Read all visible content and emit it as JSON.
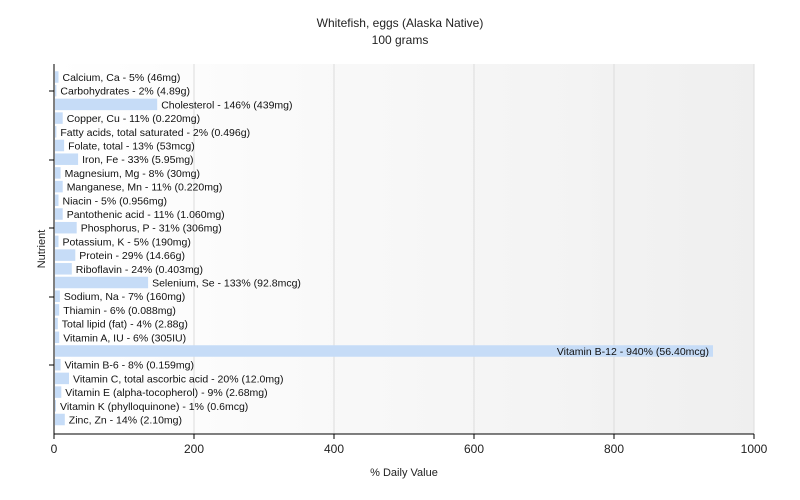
{
  "chart_data": {
    "type": "bar",
    "orientation": "horizontal",
    "title": "Whitefish, eggs (Alaska Native)",
    "subtitle": "100 grams",
    "xlabel": "% Daily Value",
    "ylabel": "Nutrient",
    "xlim": [
      0,
      1000
    ],
    "xticks": [
      0,
      200,
      400,
      600,
      800,
      1000
    ],
    "grid": "vertical",
    "bar_color": "#c6dcf7",
    "categories": [
      "Calcium, Ca",
      "Carbohydrates",
      "Cholesterol",
      "Copper, Cu",
      "Fatty acids, total saturated",
      "Folate, total",
      "Iron, Fe",
      "Magnesium, Mg",
      "Manganese, Mn",
      "Niacin",
      "Pantothenic acid",
      "Phosphorus, P",
      "Potassium, K",
      "Protein",
      "Riboflavin",
      "Selenium, Se",
      "Sodium, Na",
      "Thiamin",
      "Total lipid (fat)",
      "Vitamin A, IU",
      "Vitamin B-12",
      "Vitamin B-6",
      "Vitamin C, total ascorbic acid",
      "Vitamin E (alpha-tocopherol)",
      "Vitamin K (phylloquinone)",
      "Zinc, Zn"
    ],
    "values": [
      5,
      2,
      146,
      11,
      2,
      13,
      33,
      8,
      11,
      5,
      11,
      31,
      5,
      29,
      24,
      133,
      7,
      6,
      4,
      6,
      940,
      8,
      20,
      9,
      1,
      14
    ],
    "labels": [
      "Calcium, Ca - 5% (46mg)",
      "Carbohydrates - 2% (4.89g)",
      "Cholesterol - 146% (439mg)",
      "Copper, Cu - 11% (0.220mg)",
      "Fatty acids, total saturated - 2% (0.496g)",
      "Folate, total - 13% (53mcg)",
      "Iron, Fe - 33% (5.95mg)",
      "Magnesium, Mg - 8% (30mg)",
      "Manganese, Mn - 11% (0.220mg)",
      "Niacin - 5% (0.956mg)",
      "Pantothenic acid - 11% (1.060mg)",
      "Phosphorus, P - 31% (306mg)",
      "Potassium, K - 5% (190mg)",
      "Protein - 29% (14.66g)",
      "Riboflavin - 24% (0.403mg)",
      "Selenium, Se - 133% (92.8mcg)",
      "Sodium, Na - 7% (160mg)",
      "Thiamin - 6% (0.088mg)",
      "Total lipid (fat) - 4% (2.88g)",
      "Vitamin A, IU - 6% (305IU)",
      "Vitamin B-12 - 940% (56.40mcg)",
      "Vitamin B-6 - 8% (0.159mg)",
      "Vitamin C, total ascorbic acid - 20% (12.0mg)",
      "Vitamin E (alpha-tocopherol) - 9% (2.68mg)",
      "Vitamin K (phylloquinone) - 1% (0.6mcg)",
      "Zinc, Zn - 14% (2.10mg)"
    ]
  }
}
